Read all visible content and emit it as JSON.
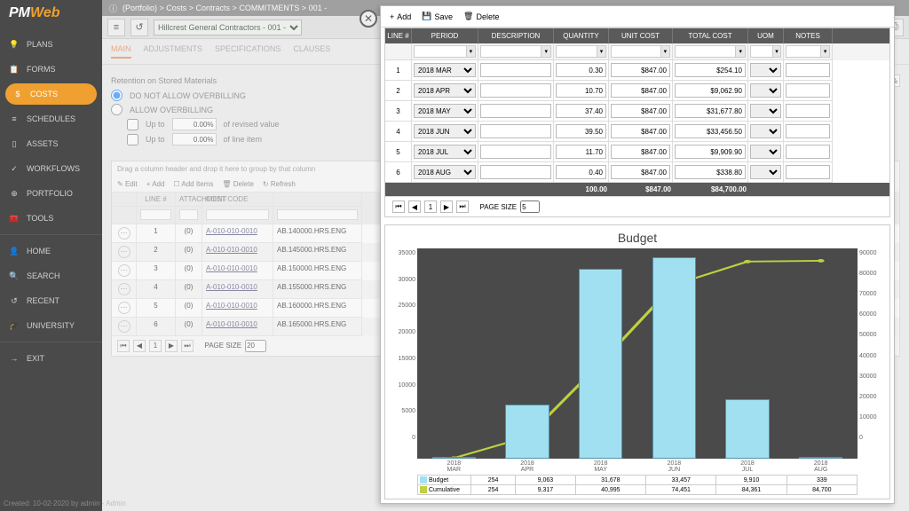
{
  "app": {
    "logo_a": "PM",
    "logo_b": "Web"
  },
  "breadcrumb": "(Portfolio) > Costs > Contracts > COMMITMENTS > 001 - ",
  "sidebar": {
    "items": [
      {
        "label": "PLANS",
        "icon": "💡"
      },
      {
        "label": "FORMS",
        "icon": "📋"
      },
      {
        "label": "COSTS",
        "icon": "$",
        "active": true
      },
      {
        "label": "SCHEDULES",
        "icon": "≡"
      },
      {
        "label": "ASSETS",
        "icon": "▯"
      },
      {
        "label": "WORKFLOWS",
        "icon": "✓"
      },
      {
        "label": "PORTFOLIO",
        "icon": "⊕"
      },
      {
        "label": "TOOLS",
        "icon": "🧰"
      }
    ],
    "items2": [
      {
        "label": "HOME",
        "icon": "👤"
      },
      {
        "label": "SEARCH",
        "icon": "🔍"
      },
      {
        "label": "RECENT",
        "icon": "↺"
      },
      {
        "label": "UNIVERSITY",
        "icon": "🎓"
      }
    ],
    "exit": {
      "label": "EXIT",
      "icon": "→"
    }
  },
  "footer": "Created: 10-02-2020 by admin - Admin",
  "bg": {
    "dropdown": "Hillcrest General Contractors - 001 - ",
    "tabs": [
      "MAIN",
      "ADJUSTMENTS",
      "SPECIFICATIONS",
      "CLAUSES"
    ],
    "retention_label": "Retention on Stored Materials",
    "retention_val": "0.00%",
    "radio1": "DO NOT ALLOW OVERBILLING",
    "radio2": "ALLOW OVERBILLING",
    "upto": "Up to",
    "pct": "0.00%",
    "rev": "of revised value",
    "line": "of line item",
    "gridhint": "Drag a column header and drop it here to group by that column",
    "gtb": {
      "edit": "Edit",
      "add": "Add",
      "additems": "Add Items",
      "delete": "Delete",
      "refresh": "Refresh"
    },
    "cols": [
      "",
      "LINE #",
      "ATTACHMENT",
      "COST CODE",
      ""
    ],
    "rows": [
      {
        "n": "1",
        "a": "(0)",
        "c": "A-010-010-0010",
        "d": "AB.140000.HRS.ENG"
      },
      {
        "n": "2",
        "a": "(0)",
        "c": "A-010-010-0010",
        "d": "AB.145000.HRS.ENG"
      },
      {
        "n": "3",
        "a": "(0)",
        "c": "A-010-010-0010",
        "d": "AB.150000.HRS.ENG"
      },
      {
        "n": "4",
        "a": "(0)",
        "c": "A-010-010-0010",
        "d": "AB.155000.HRS.ENG"
      },
      {
        "n": "5",
        "a": "(0)",
        "c": "A-010-010-0010",
        "d": "AB.160000.HRS.ENG"
      },
      {
        "n": "6",
        "a": "(0)",
        "c": "A-010-010-0010",
        "d": "AB.165000.HRS.ENG"
      }
    ],
    "pagesize_label": "PAGE SIZE",
    "pagesize": "20",
    "page": "1"
  },
  "panel": {
    "tb": {
      "add": "Add",
      "save": "Save",
      "delete": "Delete"
    },
    "cols": [
      "LINE #",
      "PERIOD",
      "DESCRIPTION",
      "QUANTITY",
      "UNIT COST",
      "TOTAL COST",
      "UOM",
      "NOTES"
    ],
    "rows": [
      {
        "n": "1",
        "period": "2018 MAR",
        "qty": "0.30",
        "unit": "$847.00",
        "total": "$254.10"
      },
      {
        "n": "2",
        "period": "2018 APR",
        "qty": "10.70",
        "unit": "$847.00",
        "total": "$9,062.90"
      },
      {
        "n": "3",
        "period": "2018 MAY",
        "qty": "37.40",
        "unit": "$847.00",
        "total": "$31,677.80"
      },
      {
        "n": "4",
        "period": "2018 JUN",
        "qty": "39.50",
        "unit": "$847.00",
        "total": "$33,456.50"
      },
      {
        "n": "5",
        "period": "2018 JUL",
        "qty": "11.70",
        "unit": "$847.00",
        "total": "$9,909.90"
      },
      {
        "n": "6",
        "period": "2018 AUG",
        "qty": "0.40",
        "unit": "$847.00",
        "total": "$338.80"
      }
    ],
    "totals": {
      "qty": "100.00",
      "unit": "$847.00",
      "total": "$84,700.00"
    },
    "pagesize_label": "PAGE SIZE",
    "pagesize": "5",
    "page": "1"
  },
  "chart": {
    "title": "Budget",
    "type": "bar+line",
    "background_color": "#4a4a4a",
    "bar_color": "#a0e0f0",
    "bar_border": "#5090a8",
    "line_color": "#c0d040",
    "categories": [
      "2018\nMAR",
      "2018\nAPR",
      "2018\nMAY",
      "2018\nJUN",
      "2018\nJUL",
      "2018\nAUG"
    ],
    "budget": [
      254,
      9063,
      31678,
      33457,
      9910,
      339
    ],
    "cumulative": [
      254,
      9317,
      40995,
      74451,
      84361,
      84700
    ],
    "y_left_max": 35000,
    "y_left_step": 5000,
    "y_right_max": 90000,
    "y_right_step": 10000,
    "legend_budget": "Budget",
    "legend_cum": "Cumulative",
    "table_budget": [
      "254",
      "9,063",
      "31,678",
      "33,457",
      "9,910",
      "339"
    ],
    "table_cum": [
      "254",
      "9,317",
      "40,995",
      "74,451",
      "84,361",
      "84,700"
    ]
  }
}
